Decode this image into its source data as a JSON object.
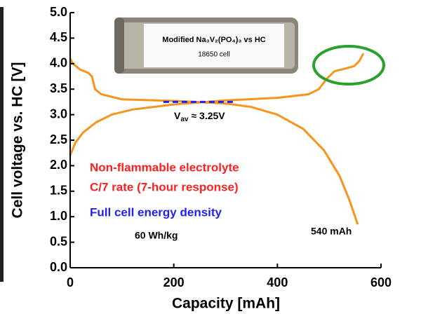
{
  "chart_data": {
    "type": "line",
    "xlabel": "Capacity [mAh]",
    "ylabel": "Cell voltage vs. HC [V]",
    "xlim": [
      0,
      600
    ],
    "xticks": [
      0,
      200,
      400,
      600
    ],
    "ylim": [
      0,
      5
    ],
    "yticks": [
      {
        "value": 0,
        "label": "0.0"
      },
      0.5,
      {
        "value": 1,
        "label": "1.0"
      },
      1.5,
      {
        "value": 2,
        "label": "2.0"
      },
      2.5,
      {
        "value": 3,
        "label": "3.0"
      },
      3.5,
      {
        "value": 4,
        "label": "4.0"
      },
      4.5,
      {
        "value": 5,
        "label": "5.0"
      }
    ],
    "series": [
      {
        "color": "#f7941d",
        "x": [
          0,
          10,
          25,
          50,
          80,
          120,
          200,
          300,
          400,
          460,
          480,
          495,
          510,
          530,
          548,
          558,
          566
        ],
        "values": [
          2.2,
          2.45,
          2.65,
          2.85,
          3.0,
          3.1,
          3.2,
          3.28,
          3.33,
          3.4,
          3.5,
          3.7,
          3.85,
          3.9,
          3.95,
          4.05,
          4.2
        ]
      },
      {
        "color": "#f7941d",
        "x": [
          0,
          5,
          20,
          35,
          42,
          48,
          60,
          100,
          200,
          300,
          350,
          400,
          450,
          490,
          520,
          540,
          550,
          555
        ],
        "values": [
          4.1,
          4.0,
          3.88,
          3.82,
          3.75,
          3.5,
          3.4,
          3.3,
          3.27,
          3.22,
          3.15,
          3.0,
          2.72,
          2.3,
          1.8,
          1.3,
          1.0,
          0.85
        ]
      }
    ],
    "annotations": {
      "cell_title": "Modified Na₃V₂(PO₄)₃ vs HC",
      "cell_type": "18650 cell",
      "vav_main": "V",
      "vav_sub": "av",
      "vav_value": "≈ 3.25V",
      "vav_line": {
        "y": 3.25,
        "x": [
          180,
          320
        ],
        "color": "#1f1fff"
      },
      "electrolyte": "Non-flammable electrolyte",
      "rate": "C/7 rate (7-hour response)",
      "energy_title": "Full cell energy density",
      "energy_value": "60 Wh/kg",
      "capacity_label": "540 mAh"
    }
  }
}
